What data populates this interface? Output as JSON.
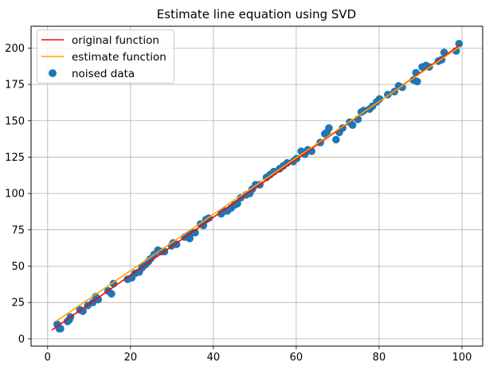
{
  "chart_data": {
    "type": "line",
    "title": "Estimate line equation using SVD",
    "xlabel": "",
    "ylabel": "",
    "xlim": [
      -4,
      105
    ],
    "ylim": [
      -5,
      215
    ],
    "grid": true,
    "xticks": [
      0,
      20,
      40,
      60,
      80,
      100
    ],
    "yticks": [
      0,
      25,
      50,
      75,
      100,
      125,
      150,
      175,
      200
    ],
    "legend_position": "upper-left",
    "series": [
      {
        "name": "original function",
        "kind": "line",
        "color": "#ff0000",
        "x": [
          1,
          99.5
        ],
        "y": [
          6,
          202
        ]
      },
      {
        "name": "estimate function",
        "kind": "line",
        "color": "#ffa500",
        "x": [
          2,
          99.5
        ],
        "y": [
          12,
          201
        ]
      },
      {
        "name": "noised data",
        "kind": "scatter",
        "color": "#1f77b4",
        "x": [
          2.3,
          2.8,
          3.1,
          4.8,
          5.2,
          5.5,
          7.8,
          8.5,
          9.7,
          10.9,
          11.6,
          12.2,
          14.6,
          15.4,
          15.9,
          19.3,
          20.3,
          21.1,
          22.1,
          22.8,
          23.6,
          24.3,
          24.8,
          25.7,
          26.6,
          27.4,
          28.2,
          29.9,
          30.3,
          31.1,
          33.1,
          33.8,
          34.3,
          34.9,
          35.6,
          36.9,
          37.6,
          38.2,
          38.9,
          41.9,
          42.7,
          43.4,
          44.3,
          45.1,
          45.8,
          46.6,
          47.9,
          48.8,
          49.4,
          50.2,
          51.2,
          52.8,
          53.7,
          54.6,
          56.0,
          56.9,
          57.8,
          59.3,
          60.1,
          61.2,
          62.1,
          62.8,
          63.7,
          65.8,
          66.9,
          67.4,
          67.9,
          69.6,
          70.4,
          71.2,
          72.9,
          73.6,
          74.9,
          75.7,
          76.3,
          77.7,
          78.4,
          79.4,
          80.1,
          82.1,
          83.7,
          84.7,
          85.6,
          88.3,
          88.9,
          89.2,
          90.4,
          91.3,
          92.1,
          94.3,
          95.1,
          95.7,
          98.6,
          99.3
        ],
        "y": [
          10,
          7,
          7,
          12,
          13,
          15,
          20,
          19,
          23,
          25,
          29,
          27,
          33,
          31,
          38,
          41,
          42,
          45,
          46,
          49,
          51,
          53,
          55,
          58,
          61,
          60,
          60,
          64,
          66,
          65,
          70,
          71,
          69,
          73,
          73,
          79,
          78,
          82,
          83,
          86,
          88,
          88,
          90,
          92,
          93,
          97,
          99,
          100,
          103,
          106,
          106,
          111,
          113,
          115,
          117,
          119,
          121,
          122,
          124,
          129,
          127,
          130,
          129,
          135,
          141,
          142,
          145,
          137,
          142,
          145,
          149,
          147,
          151,
          156,
          157,
          158,
          160,
          163,
          165,
          168,
          170,
          174,
          173,
          178,
          183,
          177,
          187,
          188,
          187,
          191,
          192,
          197,
          198,
          203
        ]
      }
    ]
  }
}
